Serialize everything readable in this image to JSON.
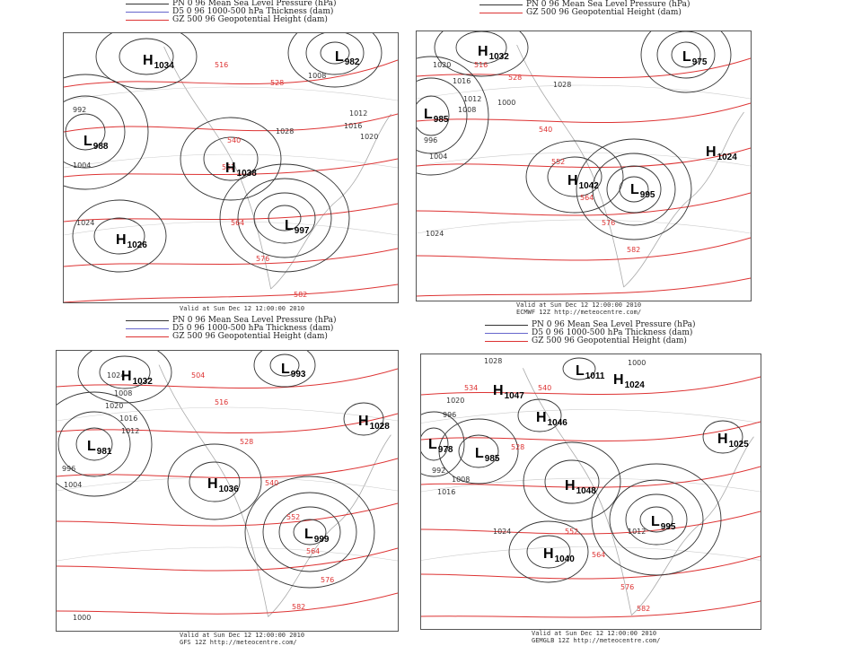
{
  "panels": [
    {
      "id": "p1",
      "legend": [
        {
          "label": "PN 0 96 Mean Sea Level Pressure (hPa)",
          "color": "#333333"
        },
        {
          "label": "D5 0 96 1000-500 hPa Thickness (dam)",
          "color": "#6666cc"
        },
        {
          "label": "GZ 500 96 Geopotential Height (dam)",
          "color": "#dd3333"
        }
      ],
      "footer": [
        "Valid at Sun Dec 12 12:00:00 2010"
      ],
      "centers": [
        {
          "type": "H",
          "value": "1034"
        },
        {
          "type": "L",
          "value": "982"
        },
        {
          "type": "L",
          "value": "988"
        },
        {
          "type": "H",
          "value": "1038"
        },
        {
          "type": "L",
          "value": "997"
        },
        {
          "type": "H",
          "value": "1026"
        }
      ],
      "labels": [
        "516",
        "528",
        "1008",
        "1012",
        "1016",
        "1020",
        "1028",
        "540",
        "552",
        "564",
        "576",
        "582",
        "992",
        "1004",
        "1024"
      ]
    },
    {
      "id": "p2",
      "legend": [
        {
          "label": "PN 0 96 Mean Sea Level Pressure (hPa)",
          "color": "#333333"
        },
        {
          "label": "GZ 500 96 Geopotential Height (dam)",
          "color": "#dd3333"
        }
      ],
      "footer": [
        "Valid at Sun Dec 12 12:00:00 2010",
        "ECMWF 12Z http://meteocentre.com/"
      ],
      "centers": [
        {
          "type": "H",
          "value": "1032"
        },
        {
          "type": "L",
          "value": "975"
        },
        {
          "type": "L",
          "value": "985"
        },
        {
          "type": "H",
          "value": "1024"
        },
        {
          "type": "H",
          "value": "1042"
        },
        {
          "type": "L",
          "value": "995"
        }
      ],
      "labels": [
        "1020",
        "1016",
        "1012",
        "1008",
        "1000",
        "1028",
        "996",
        "1004",
        "516",
        "528",
        "540",
        "552",
        "564",
        "576",
        "582",
        "1024"
      ]
    },
    {
      "id": "p3",
      "legend": [
        {
          "label": "PN 0 96 Mean Sea Level Pressure (hPa)",
          "color": "#333333"
        },
        {
          "label": "D5 0 96 1000-500 hPa Thickness (dam)",
          "color": "#6666cc"
        },
        {
          "label": "GZ 500 96 Geopotential Height (dam)",
          "color": "#dd3333"
        }
      ],
      "footer": [
        "Valid at Sun Dec 12 12:00:00 2010",
        "GFS 12Z http://meteocentre.com/"
      ],
      "centers": [
        {
          "type": "H",
          "value": "1032"
        },
        {
          "type": "L",
          "value": "993"
        },
        {
          "type": "H",
          "value": "1028"
        },
        {
          "type": "L",
          "value": "981"
        },
        {
          "type": "H",
          "value": "1036"
        },
        {
          "type": "L",
          "value": "999"
        }
      ],
      "labels": [
        "1024",
        "1008",
        "1020",
        "1016",
        "1012",
        "996",
        "1004",
        "504",
        "516",
        "528",
        "540",
        "552",
        "564",
        "576",
        "582",
        "1000"
      ]
    },
    {
      "id": "p4",
      "legend": [
        {
          "label": "PN 0 96 Mean Sea Level Pressure (hPa)",
          "color": "#333333"
        },
        {
          "label": "D5 0 96 1000-500 hPa Thickness (dam)",
          "color": "#6666cc"
        },
        {
          "label": "GZ 500 96 Geopotential Height (dam)",
          "color": "#dd3333"
        }
      ],
      "footer": [
        "Valid at Sun Dec 12 12:00:00 2010",
        "GEMGLB 12Z http://meteocentre.com/"
      ],
      "centers": [
        {
          "type": "L",
          "value": "1011"
        },
        {
          "type": "H",
          "value": "1047"
        },
        {
          "type": "H",
          "value": "1024"
        },
        {
          "type": "H",
          "value": "1046"
        },
        {
          "type": "L",
          "value": "978"
        },
        {
          "type": "L",
          "value": "985"
        },
        {
          "type": "H",
          "value": "1025"
        },
        {
          "type": "H",
          "value": "1048"
        },
        {
          "type": "L",
          "value": "995"
        },
        {
          "type": "H",
          "value": "1040"
        }
      ],
      "labels": [
        "1028",
        "996",
        "1020",
        "1000",
        "992",
        "1008",
        "1016",
        "1024",
        "534",
        "540",
        "528",
        "552",
        "564",
        "576",
        "582",
        "1012"
      ]
    }
  ]
}
